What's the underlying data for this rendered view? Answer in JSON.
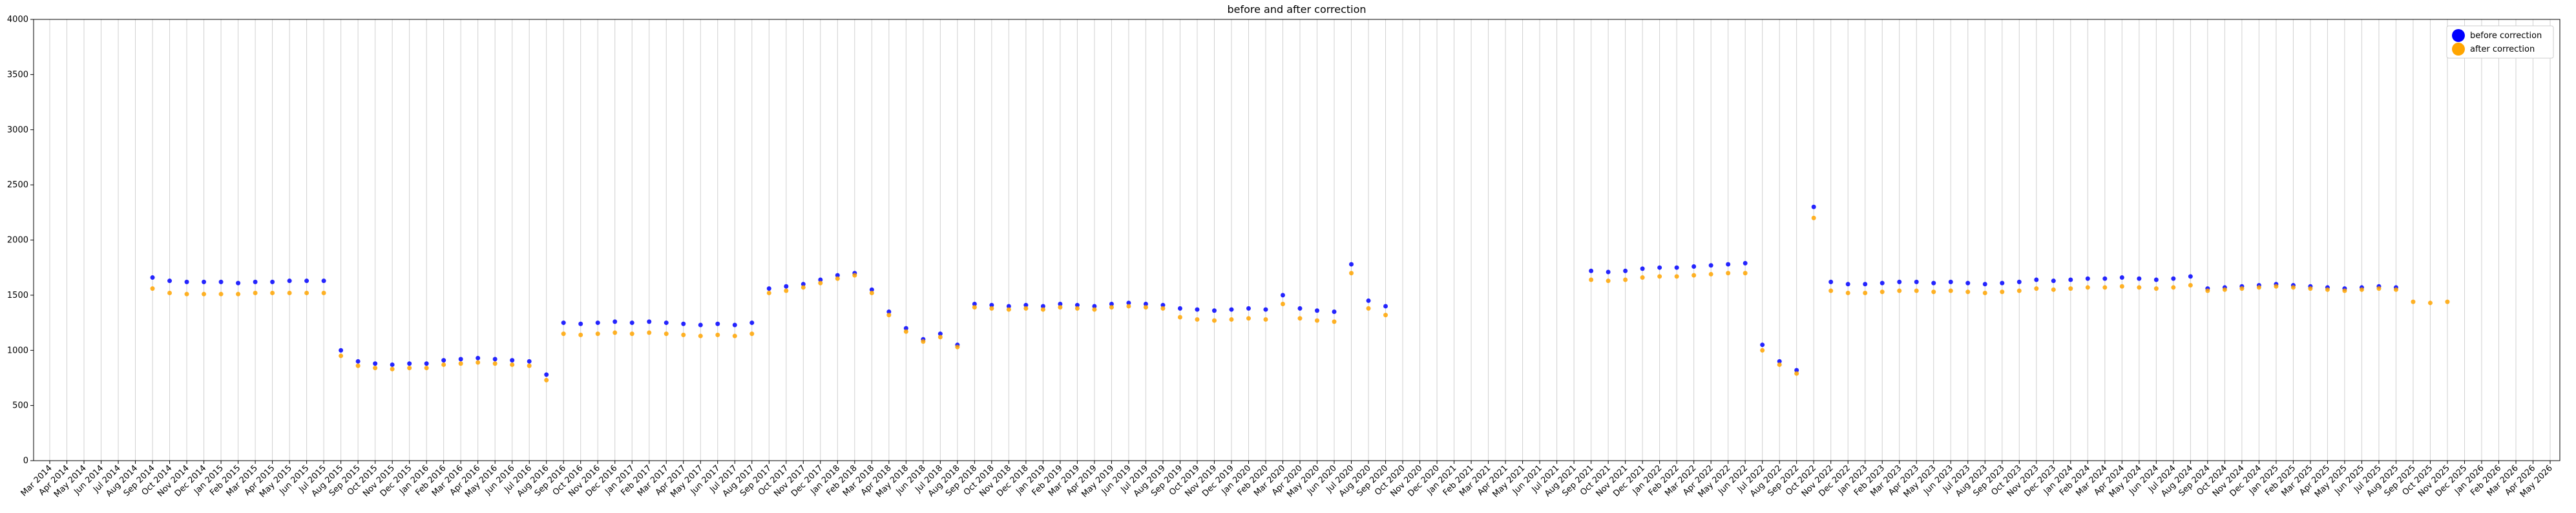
{
  "chart_data": {
    "type": "scatter",
    "title": "before and after correction",
    "categories": [
      "Mar 2014",
      "Apr 2014",
      "May 2014",
      "Jun 2014",
      "Jul 2014",
      "Aug 2014",
      "Sep 2014",
      "Oct 2014",
      "Nov 2014",
      "Dec 2014",
      "Jan 2015",
      "Feb 2015",
      "Mar 2015",
      "Apr 2015",
      "May 2015",
      "Jun 2015",
      "Jul 2015",
      "Aug 2015",
      "Sep 2015",
      "Oct 2015",
      "Nov 2015",
      "Dec 2015",
      "Jan 2016",
      "Feb 2016",
      "Mar 2016",
      "Apr 2016",
      "May 2016",
      "Jun 2016",
      "Jul 2016",
      "Aug 2016",
      "Sep 2016",
      "Oct 2016",
      "Nov 2016",
      "Dec 2016",
      "Jan 2017",
      "Feb 2017",
      "Mar 2017",
      "Apr 2017",
      "May 2017",
      "Jun 2017",
      "Jul 2017",
      "Aug 2017",
      "Sep 2017",
      "Oct 2017",
      "Nov 2017",
      "Dec 2017",
      "Jan 2018",
      "Feb 2018",
      "Mar 2018",
      "Apr 2018",
      "May 2018",
      "Jun 2018",
      "Jul 2018",
      "Aug 2018",
      "Sep 2018",
      "Oct 2018",
      "Nov 2018",
      "Dec 2018",
      "Jan 2019",
      "Feb 2019",
      "Mar 2019",
      "Apr 2019",
      "May 2019",
      "Jun 2019",
      "Jul 2019",
      "Aug 2019",
      "Sep 2019",
      "Oct 2019",
      "Nov 2019",
      "Dec 2019",
      "Jan 2020",
      "Feb 2020",
      "Mar 2020",
      "Apr 2020",
      "May 2020",
      "Jun 2020",
      "Jul 2020",
      "Aug 2020",
      "Sep 2020",
      "Oct 2020",
      "Nov 2020",
      "Dec 2020",
      "Jan 2021",
      "Feb 2021",
      "Mar 2021",
      "Apr 2021",
      "May 2021",
      "Jun 2021",
      "Jul 2021",
      "Aug 2021",
      "Sep 2021",
      "Oct 2021",
      "Nov 2021",
      "Dec 2021",
      "Jan 2022",
      "Feb 2022",
      "Mar 2022",
      "Apr 2022",
      "May 2022",
      "Jun 2022",
      "Jul 2022",
      "Aug 2022",
      "Sep 2022",
      "Oct 2022",
      "Nov 2022",
      "Dec 2022",
      "Jan 2023",
      "Feb 2023",
      "Mar 2023",
      "Apr 2023",
      "May 2023",
      "Jun 2023",
      "Jul 2023",
      "Aug 2023",
      "Sep 2023",
      "Oct 2023",
      "Nov 2023",
      "Dec 2023",
      "Jan 2024",
      "Feb 2024",
      "Mar 2024",
      "Apr 2024",
      "May 2024",
      "Jun 2024",
      "Jul 2024",
      "Aug 2024",
      "Sep 2024",
      "Oct 2024",
      "Nov 2024",
      "Dec 2024",
      "Jan 2025",
      "Feb 2025",
      "Mar 2025",
      "Apr 2025",
      "May 2025",
      "Jun 2025",
      "Jul 2025",
      "Aug 2025",
      "Sep 2025",
      "Oct 2025",
      "Nov 2025",
      "Dec 2025",
      "Jan 2026",
      "Feb 2026",
      "Mar 2026",
      "Apr 2026",
      "May 2026"
    ],
    "series": [
      {
        "name": "before correction",
        "color": "#0000ff",
        "values": [
          null,
          null,
          null,
          null,
          null,
          null,
          1660,
          1630,
          1620,
          1620,
          1620,
          1610,
          1620,
          1620,
          1630,
          1630,
          1630,
          1000,
          900,
          880,
          870,
          880,
          880,
          910,
          920,
          930,
          920,
          910,
          900,
          780,
          1250,
          1240,
          1250,
          1260,
          1250,
          1260,
          1250,
          1240,
          1230,
          1240,
          1230,
          1250,
          1560,
          1580,
          1600,
          1640,
          1680,
          1700,
          1550,
          1350,
          1200,
          1100,
          1150,
          1050,
          1420,
          1410,
          1400,
          1410,
          1400,
          1420,
          1410,
          1400,
          1420,
          1430,
          1420,
          1410,
          1380,
          1370,
          1360,
          1370,
          1380,
          1370,
          1500,
          1380,
          1360,
          1350,
          1780,
          1450,
          1400,
          null,
          null,
          null,
          null,
          null,
          null,
          null,
          null,
          null,
          null,
          null,
          1720,
          1710,
          1720,
          1740,
          1750,
          1750,
          1760,
          1770,
          1780,
          1790,
          1050,
          900,
          820,
          2300,
          1620,
          1600,
          1600,
          1610,
          1620,
          1620,
          1610,
          1620,
          1610,
          1600,
          1610,
          1620,
          1640,
          1630,
          1640,
          1650,
          1650,
          1660,
          1650,
          1640,
          1650,
          1670,
          1560,
          1570,
          1580,
          1590,
          1600,
          1590,
          1580,
          1570,
          1560,
          1570,
          1580,
          1570,
          null,
          null,
          null,
          null,
          null,
          null,
          null,
          null,
          null
        ]
      },
      {
        "name": "after correction",
        "color": "#ffa500",
        "values": [
          null,
          null,
          null,
          null,
          null,
          null,
          1560,
          1520,
          1510,
          1510,
          1510,
          1510,
          1520,
          1520,
          1520,
          1520,
          1520,
          950,
          860,
          840,
          830,
          840,
          840,
          870,
          880,
          890,
          880,
          870,
          860,
          730,
          1150,
          1140,
          1150,
          1160,
          1150,
          1160,
          1150,
          1140,
          1130,
          1140,
          1130,
          1150,
          1520,
          1540,
          1570,
          1610,
          1650,
          1680,
          1520,
          1320,
          1170,
          1080,
          1120,
          1030,
          1390,
          1380,
          1370,
          1380,
          1370,
          1390,
          1380,
          1370,
          1390,
          1400,
          1390,
          1380,
          1300,
          1280,
          1270,
          1280,
          1290,
          1280,
          1420,
          1290,
          1270,
          1260,
          1700,
          1380,
          1320,
          null,
          null,
          null,
          null,
          null,
          null,
          null,
          null,
          null,
          null,
          null,
          1640,
          1630,
          1640,
          1660,
          1670,
          1670,
          1680,
          1690,
          1700,
          1700,
          1000,
          870,
          790,
          2200,
          1540,
          1520,
          1520,
          1530,
          1540,
          1540,
          1530,
          1540,
          1530,
          1520,
          1530,
          1540,
          1560,
          1550,
          1560,
          1570,
          1570,
          1580,
          1570,
          1560,
          1570,
          1590,
          1540,
          1550,
          1560,
          1570,
          1580,
          1570,
          1560,
          1550,
          1540,
          1550,
          1560,
          1550,
          1440,
          1430,
          1440,
          null,
          null,
          null,
          null,
          null,
          null
        ]
      }
    ],
    "ylim": [
      0,
      4000
    ],
    "yticks": [
      0,
      500,
      1000,
      1500,
      2000,
      2500,
      3000,
      3500,
      4000
    ],
    "grid": true,
    "legend": "upper right"
  }
}
